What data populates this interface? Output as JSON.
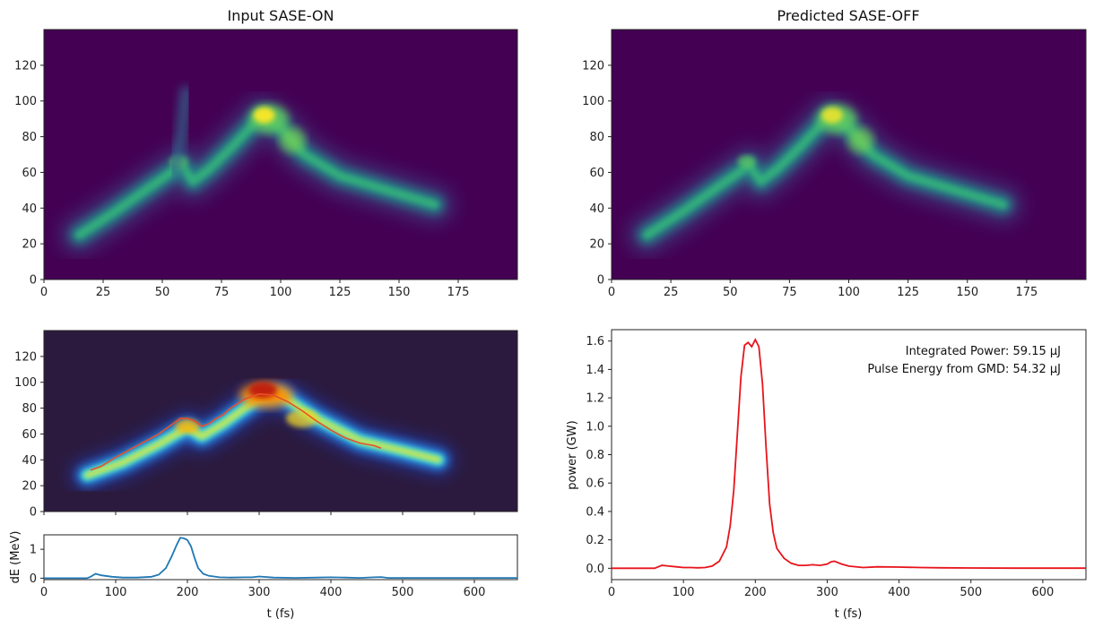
{
  "chart_data": [
    {
      "id": "input_on",
      "type": "heatmap",
      "title": "Input SASE-ON",
      "colormap": "viridis",
      "xlim": [
        0,
        200
      ],
      "ylim": [
        140,
        0
      ],
      "xticks": [
        0,
        25,
        50,
        75,
        100,
        125,
        150,
        175
      ],
      "yticks": [
        0,
        20,
        40,
        60,
        80,
        100,
        120
      ],
      "ridge": [
        [
          15,
          25
        ],
        [
          30,
          38
        ],
        [
          45,
          52
        ],
        [
          58,
          64
        ],
        [
          63,
          55
        ],
        [
          70,
          62
        ],
        [
          80,
          75
        ],
        [
          92,
          92
        ],
        [
          100,
          85
        ],
        [
          110,
          70
        ],
        [
          125,
          58
        ],
        [
          145,
          50
        ],
        [
          165,
          42
        ]
      ],
      "spur": [
        [
          55,
          60
        ],
        [
          58,
          80
        ],
        [
          60,
          105
        ]
      ]
    },
    {
      "id": "pred_off",
      "type": "heatmap",
      "title": "Predicted SASE-OFF",
      "colormap": "viridis",
      "xlim": [
        0,
        200
      ],
      "ylim": [
        140,
        0
      ],
      "xticks": [
        0,
        25,
        50,
        75,
        100,
        125,
        150,
        175
      ],
      "yticks": [
        0,
        20,
        40,
        60,
        80,
        100,
        120
      ],
      "ridge": [
        [
          15,
          25
        ],
        [
          30,
          38
        ],
        [
          45,
          52
        ],
        [
          58,
          64
        ],
        [
          63,
          55
        ],
        [
          70,
          62
        ],
        [
          80,
          75
        ],
        [
          92,
          92
        ],
        [
          100,
          85
        ],
        [
          110,
          70
        ],
        [
          125,
          58
        ],
        [
          145,
          50
        ],
        [
          165,
          42
        ]
      ]
    },
    {
      "id": "jet_map",
      "type": "heatmap",
      "colormap": "jet",
      "xlim": [
        0,
        660
      ],
      "ylim": [
        140,
        0
      ],
      "xticks": [
        0,
        100,
        200,
        300,
        400,
        500,
        600
      ],
      "yticks": [
        0,
        20,
        40,
        60,
        80,
        100,
        120
      ],
      "ridge": [
        [
          60,
          28
        ],
        [
          110,
          38
        ],
        [
          160,
          52
        ],
        [
          200,
          65
        ],
        [
          220,
          58
        ],
        [
          250,
          68
        ],
        [
          300,
          88
        ],
        [
          330,
          90
        ],
        [
          380,
          72
        ],
        [
          440,
          55
        ],
        [
          500,
          47
        ],
        [
          550,
          40
        ]
      ],
      "trace": {
        "color": "#e8502a",
        "x": [
          65,
          80,
          100,
          120,
          140,
          160,
          180,
          190,
          200,
          210,
          220,
          230,
          240,
          250,
          260,
          280,
          300,
          320,
          340,
          360,
          380,
          400,
          420,
          440,
          460,
          470
        ],
        "y": [
          32,
          35,
          42,
          48,
          54,
          60,
          68,
          72,
          72,
          70,
          66,
          68,
          72,
          75,
          80,
          87,
          91,
          90,
          85,
          78,
          70,
          63,
          57,
          53,
          51,
          49
        ]
      }
    },
    {
      "id": "de_plot",
      "type": "line",
      "xlabel": "t (fs)",
      "ylabel": "dE (MeV)",
      "xlim": [
        0,
        660
      ],
      "ylim": [
        -0.05,
        1.5
      ],
      "xticks": [
        0,
        100,
        200,
        300,
        400,
        500,
        600
      ],
      "yticks": [
        0,
        1
      ],
      "series": [
        {
          "color": "#1f77b4",
          "x": [
            0,
            60,
            65,
            72,
            80,
            95,
            110,
            130,
            150,
            160,
            170,
            178,
            185,
            190,
            195,
            200,
            205,
            210,
            215,
            222,
            230,
            245,
            260,
            280,
            290,
            300,
            320,
            350,
            380,
            400,
            420,
            440,
            460,
            470,
            480,
            520,
            560,
            600,
            660
          ],
          "y": [
            0,
            0,
            0.05,
            0.15,
            0.1,
            0.05,
            0.02,
            0.02,
            0.05,
            0.12,
            0.35,
            0.75,
            1.15,
            1.4,
            1.38,
            1.32,
            1.1,
            0.7,
            0.35,
            0.15,
            0.08,
            0.03,
            0.02,
            0.03,
            0.03,
            0.06,
            0.02,
            0.01,
            0.02,
            0.03,
            0.02,
            0.01,
            0.03,
            0.04,
            0.01,
            0.01,
            0.01,
            0.01,
            0.01
          ]
        }
      ]
    },
    {
      "id": "power_plot",
      "type": "line",
      "xlabel": "t (fs)",
      "ylabel": "power (GW)",
      "xlim": [
        0,
        660
      ],
      "ylim": [
        -0.08,
        1.68
      ],
      "xticks": [
        0,
        100,
        200,
        300,
        400,
        500,
        600
      ],
      "yticks": [
        0.0,
        0.2,
        0.4,
        0.6,
        0.8,
        1.0,
        1.2,
        1.4,
        1.6
      ],
      "ytick_labels": [
        "0.0",
        "0.2",
        "0.4",
        "0.6",
        "0.8",
        "1.0",
        "1.2",
        "1.4",
        "1.6"
      ],
      "series": [
        {
          "color": "#e8141b",
          "x": [
            0,
            60,
            70,
            80,
            90,
            100,
            110,
            120,
            130,
            140,
            150,
            160,
            165,
            170,
            175,
            180,
            185,
            190,
            195,
            200,
            205,
            210,
            215,
            220,
            225,
            230,
            240,
            250,
            260,
            270,
            280,
            290,
            300,
            305,
            310,
            320,
            330,
            350,
            370,
            400,
            430,
            460,
            500,
            560,
            600,
            660
          ],
          "y": [
            0,
            0,
            0.02,
            0.015,
            0.01,
            0.005,
            0.005,
            0.003,
            0.005,
            0.015,
            0.05,
            0.15,
            0.3,
            0.55,
            0.95,
            1.35,
            1.57,
            1.59,
            1.56,
            1.61,
            1.56,
            1.3,
            0.85,
            0.45,
            0.25,
            0.14,
            0.07,
            0.035,
            0.02,
            0.02,
            0.025,
            0.02,
            0.03,
            0.045,
            0.05,
            0.03,
            0.015,
            0.005,
            0.01,
            0.008,
            0.005,
            0.003,
            0.002,
            0.001,
            0.001,
            0.001
          ]
        }
      ],
      "annotations": [
        "Integrated Power: 59.15 μJ",
        "Pulse Energy from GMD: 54.32  μJ"
      ]
    }
  ]
}
